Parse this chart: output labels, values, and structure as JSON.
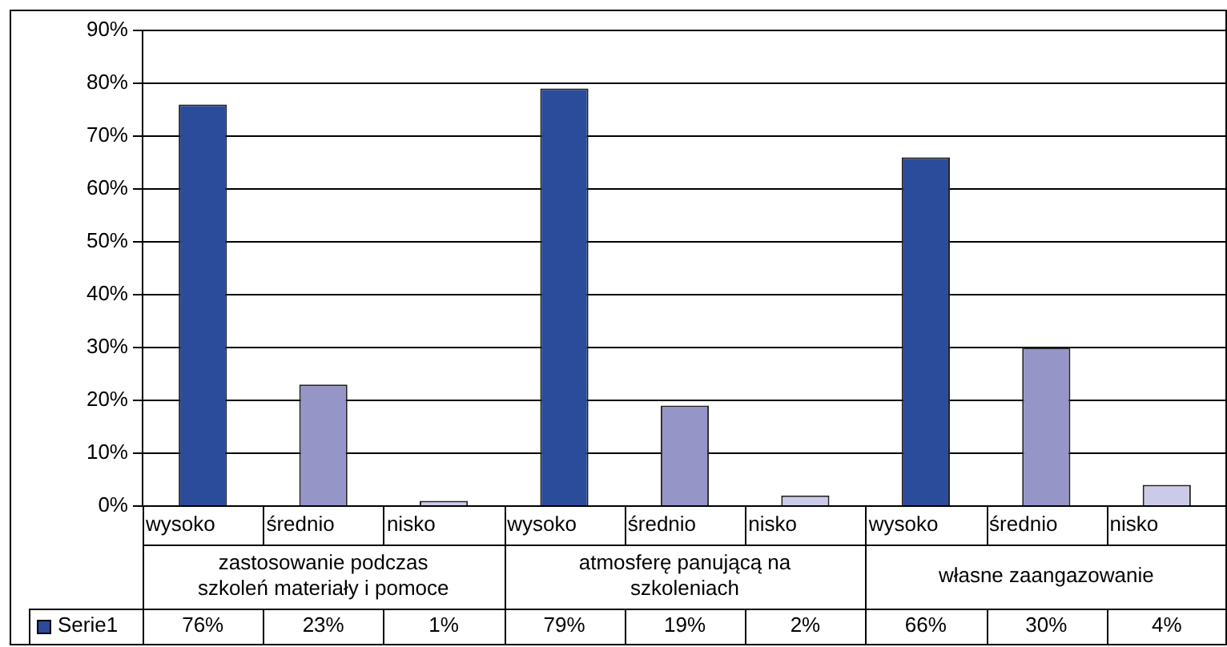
{
  "chart_data": {
    "type": "bar",
    "categories": [
      "wysoko",
      "średnio",
      "nisko",
      "wysoko",
      "średnio",
      "nisko",
      "wysoko",
      "średnio",
      "nisko"
    ],
    "series": [
      {
        "name": "Serie1",
        "color": "#2b4b9b",
        "colors": [
          "#2b4b9b",
          "#9595c8",
          "#cbcbe9",
          "#2b4b9b",
          "#9595c8",
          "#cbcbe9",
          "#2b4b9b",
          "#9595c8",
          "#cbcbe9"
        ],
        "values": [
          76,
          23,
          1,
          79,
          19,
          2,
          66,
          30,
          4
        ],
        "value_labels": [
          "76%",
          "23%",
          "1%",
          "79%",
          "19%",
          "2%",
          "66%",
          "30%",
          "4%"
        ]
      }
    ],
    "annotations": [
      "zastosowanie podczas\nszkoleń materiały i pomoce",
      "atmosferę panującą na\nszkoleniach",
      "własne zaangazowanie"
    ],
    "ylim": [
      0,
      90
    ],
    "yticks": [
      {
        "value": 0,
        "label": "0%"
      },
      {
        "value": 10,
        "label": "10%"
      },
      {
        "value": 20,
        "label": "20%"
      },
      {
        "value": 30,
        "label": "30%"
      },
      {
        "value": 40,
        "label": "40%"
      },
      {
        "value": 50,
        "label": "50%"
      },
      {
        "value": 60,
        "label": "60%"
      },
      {
        "value": 70,
        "label": "70%"
      },
      {
        "value": 80,
        "label": "80%"
      },
      {
        "value": 90,
        "label": "90%"
      }
    ],
    "grid": "y",
    "legend": "bottom"
  }
}
